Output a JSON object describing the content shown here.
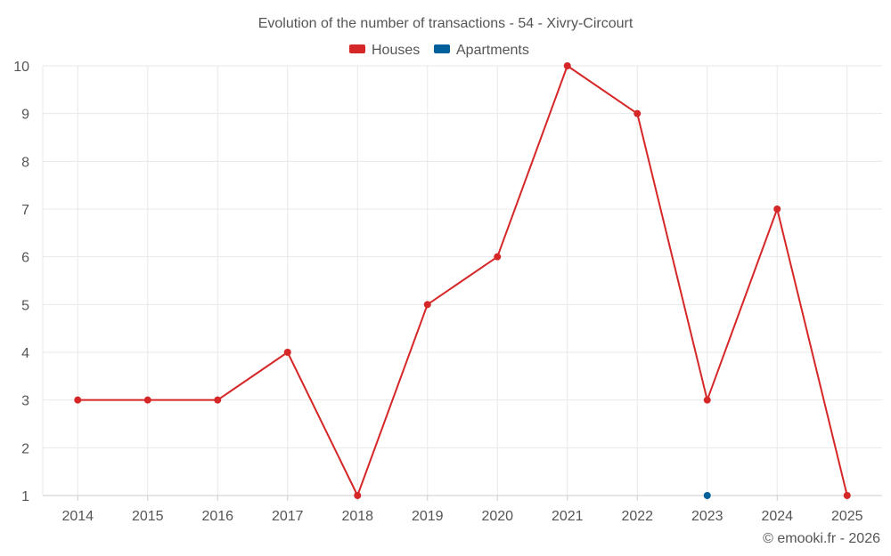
{
  "chart_data": {
    "type": "line",
    "title": "Evolution of the number of transactions - 54 - Xivry-Circourt",
    "categories": [
      "2014",
      "2015",
      "2016",
      "2017",
      "2018",
      "2019",
      "2020",
      "2021",
      "2022",
      "2023",
      "2024",
      "2025"
    ],
    "series": [
      {
        "name": "Houses",
        "color": "#d62728",
        "values": [
          3,
          3,
          3,
          4,
          1,
          5,
          6,
          10,
          9,
          3,
          7,
          1
        ]
      },
      {
        "name": "Apartments",
        "color": "#00609c",
        "values": [
          null,
          null,
          null,
          null,
          null,
          null,
          null,
          null,
          null,
          1,
          null,
          null
        ]
      }
    ],
    "ylim": [
      1,
      10
    ],
    "yticks": [
      1,
      2,
      3,
      4,
      5,
      6,
      7,
      8,
      9,
      10
    ],
    "xlabel": "",
    "ylabel": "",
    "grid": true,
    "legend_position": "top-center"
  },
  "credit": "© emooki.fr - 2026"
}
